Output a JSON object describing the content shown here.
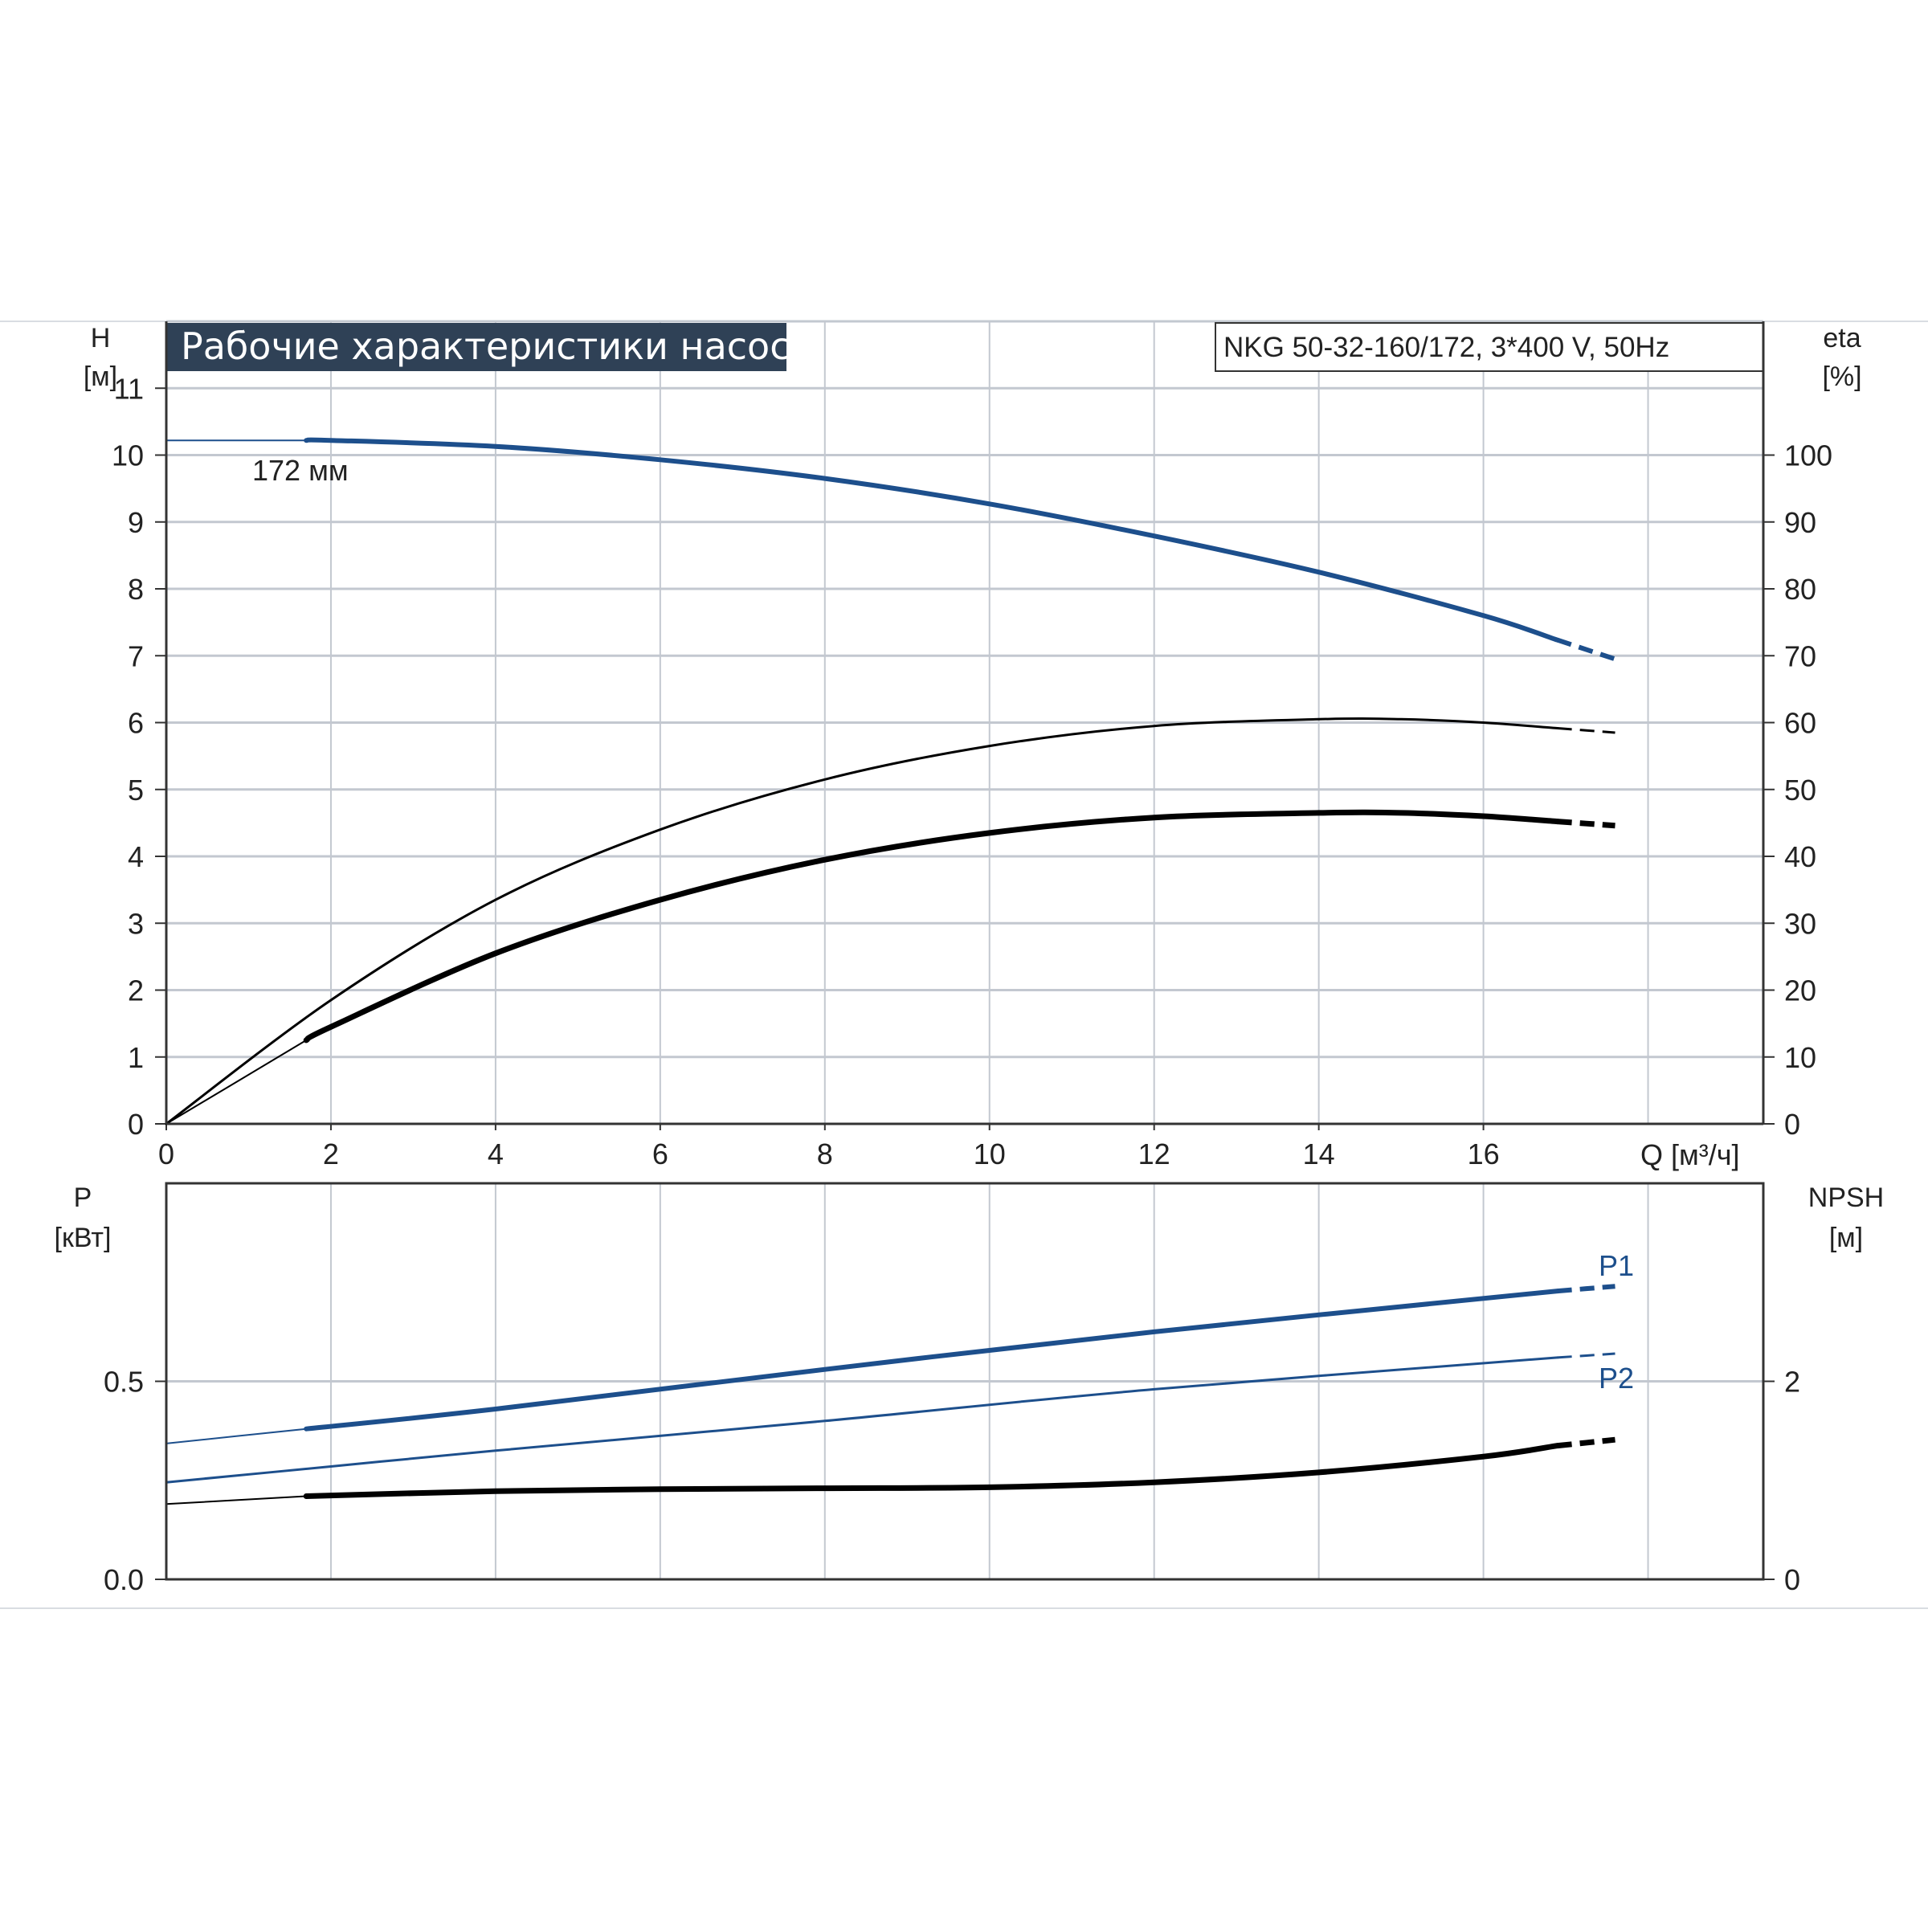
{
  "chart_data": [
    {
      "type": "line",
      "title": "Рабочие характеристики насоса",
      "model_label": "NKG 50-32-160/172, 3*400 V, 50Hz",
      "impeller_label": "172 мм",
      "xlabel": "Q [м³/ч]",
      "xlim": [
        0,
        19.4
      ],
      "xticks": [
        "0",
        "2",
        "4",
        "6",
        "8",
        "10",
        "12",
        "14",
        "16"
      ],
      "ylabel_left": [
        "H",
        "[м]"
      ],
      "ylim_left": [
        0,
        12
      ],
      "yticks_left": [
        "0",
        "1",
        "2",
        "3",
        "4",
        "5",
        "6",
        "7",
        "8",
        "9",
        "10",
        "11"
      ],
      "ylabel_right": [
        "eta",
        "[%]"
      ],
      "ylim_right": [
        0,
        120
      ],
      "yticks_right": [
        "0",
        "10",
        "20",
        "30",
        "40",
        "50",
        "60",
        "70",
        "80",
        "90",
        "100"
      ],
      "grid": true,
      "series": [
        {
          "axis": "left",
          "color": "#1d4f8c",
          "width": 6,
          "x": [
            0,
            1.7,
            2,
            4,
            6,
            8,
            10,
            12,
            14,
            16,
            17.6
          ],
          "y": [
            10.22,
            10.22,
            10.22,
            10.13,
            9.93,
            9.65,
            9.27,
            8.79,
            8.25,
            7.6,
            6.95
          ],
          "dash_from": 16.9,
          "thin_until": 1.7
        },
        {
          "axis": "right",
          "color": "#000000",
          "width": 3,
          "x": [
            0,
            2,
            4,
            6,
            8,
            10,
            12,
            14,
            15,
            16,
            17.6
          ],
          "y": [
            0,
            18.5,
            33.5,
            44,
            51.5,
            56.5,
            59.5,
            60.5,
            60.5,
            60,
            58.5
          ],
          "dash_from": 16.9
        },
        {
          "axis": "right",
          "color": "#000000",
          "width": 7,
          "x": [
            0,
            1.7,
            2,
            4,
            6,
            8,
            10,
            12,
            14,
            15,
            16,
            17.6
          ],
          "y": [
            0,
            12.5,
            14.5,
            25.5,
            33.5,
            39.5,
            43.5,
            45.8,
            46.5,
            46.5,
            46,
            44.6
          ],
          "dash_from": 16.9,
          "thin_until": 1.7
        }
      ]
    },
    {
      "type": "line",
      "xlim": [
        0,
        19.4
      ],
      "ylabel_left": [
        "P",
        "[кВт]"
      ],
      "ylim_left": [
        0,
        1
      ],
      "yticks_left": [
        {
          "v": 0.5,
          "label": "0.5"
        },
        {
          "v": 0,
          "label": "0.0"
        }
      ],
      "ylabel_right": [
        "NPSH",
        "[м]"
      ],
      "ylim_right": [
        0,
        4
      ],
      "yticks_right": [
        {
          "v": 2,
          "label": "2"
        },
        {
          "v": 0,
          "label": "0"
        }
      ],
      "grid": true,
      "series": [
        {
          "name": "P1",
          "axis": "left",
          "color": "#1d4f8c",
          "width": 6,
          "x": [
            0,
            1.7,
            4,
            8,
            12,
            16.9,
            17.6
          ],
          "y": [
            0.343,
            0.38,
            0.43,
            0.53,
            0.625,
            0.728,
            0.74
          ],
          "dash_from": 16.9,
          "thin_until": 1.7
        },
        {
          "name": "P2",
          "axis": "left",
          "color": "#1d4f8c",
          "width": 3,
          "x": [
            0,
            2,
            4,
            8,
            12,
            16.9,
            17.6
          ],
          "y": [
            0.245,
            0.285,
            0.325,
            0.4,
            0.48,
            0.56,
            0.57
          ],
          "dash_from": 16.9
        },
        {
          "axis": "right",
          "color": "#000000",
          "width": 7,
          "x": [
            0,
            1.7,
            4,
            6,
            8,
            10,
            12,
            14,
            16,
            16.9,
            17.6
          ],
          "y": [
            0.76,
            0.84,
            0.89,
            0.91,
            0.92,
            0.93,
            0.98,
            1.08,
            1.24,
            1.35,
            1.41
          ],
          "dash_from": 16.9,
          "thin_until": 1.7
        }
      ]
    }
  ]
}
